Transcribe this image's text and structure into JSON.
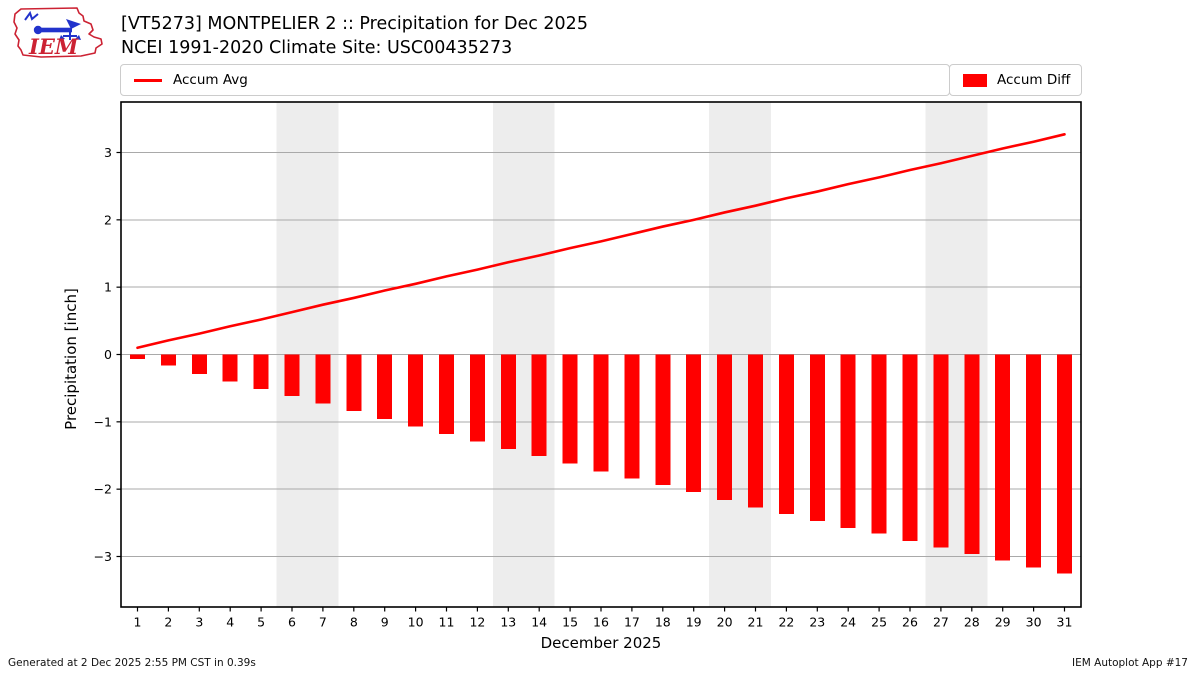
{
  "header": {
    "title_line1": "[VT5273] MONTPELIER 2 :: Precipitation for Dec 2025",
    "title_line2": "NCEI 1991-2020 Climate Site: USC00435273",
    "logo_text": "IEM"
  },
  "legend": {
    "avg_label": "Accum Avg",
    "diff_label": "Accum Diff"
  },
  "footer": {
    "generated": "Generated at 2 Dec 2025 2:55 PM CST in 0.39s",
    "app": "IEM Autoplot App #17"
  },
  "colors": {
    "accent_red": "#ff0000",
    "grid": "#a9a9a9",
    "weekend_band": "#ededed",
    "frame": "#000000",
    "legend_border": "#cccccc",
    "logo_red": "#cc2233",
    "logo_blue": "#2233cc"
  },
  "chart_data": {
    "type": "bar",
    "title": "[VT5273] MONTPELIER 2 :: Precipitation for Dec 2025",
    "subtitle": "NCEI 1991-2020 Climate Site: USC00435273",
    "xlabel": "December 2025",
    "ylabel": "Precipitation [inch]",
    "x": [
      1,
      2,
      3,
      4,
      5,
      6,
      7,
      8,
      9,
      10,
      11,
      12,
      13,
      14,
      15,
      16,
      17,
      18,
      19,
      20,
      21,
      22,
      23,
      24,
      25,
      26,
      27,
      28,
      29,
      30,
      31
    ],
    "series": [
      {
        "name": "Accum Avg",
        "type": "line",
        "values": [
          0.1,
          0.21,
          0.31,
          0.42,
          0.52,
          0.63,
          0.74,
          0.84,
          0.95,
          1.05,
          1.16,
          1.26,
          1.37,
          1.47,
          1.58,
          1.68,
          1.79,
          1.9,
          2.0,
          2.11,
          2.21,
          2.32,
          2.42,
          2.53,
          2.63,
          2.74,
          2.84,
          2.95,
          3.06,
          3.16,
          3.27
        ]
      },
      {
        "name": "Accum Diff",
        "type": "bar",
        "values": [
          -0.07,
          -0.16,
          -0.29,
          -0.4,
          -0.51,
          -0.62,
          -0.73,
          -0.84,
          -0.96,
          -1.07,
          -1.18,
          -1.29,
          -1.4,
          -1.51,
          -1.62,
          -1.74,
          -1.84,
          -1.94,
          -2.04,
          -2.16,
          -2.27,
          -2.37,
          -2.47,
          -2.58,
          -2.66,
          -2.77,
          -2.87,
          -2.96,
          -3.06,
          -3.16,
          -3.25
        ]
      }
    ],
    "ylim": [
      -3.75,
      3.75
    ],
    "yticks": [
      -3,
      -2,
      -1,
      0,
      1,
      2,
      3
    ],
    "weekend_bands": [
      [
        6,
        7
      ],
      [
        13,
        14
      ],
      [
        20,
        21
      ],
      [
        27,
        28
      ]
    ],
    "grid": true,
    "legend_position": "top"
  }
}
